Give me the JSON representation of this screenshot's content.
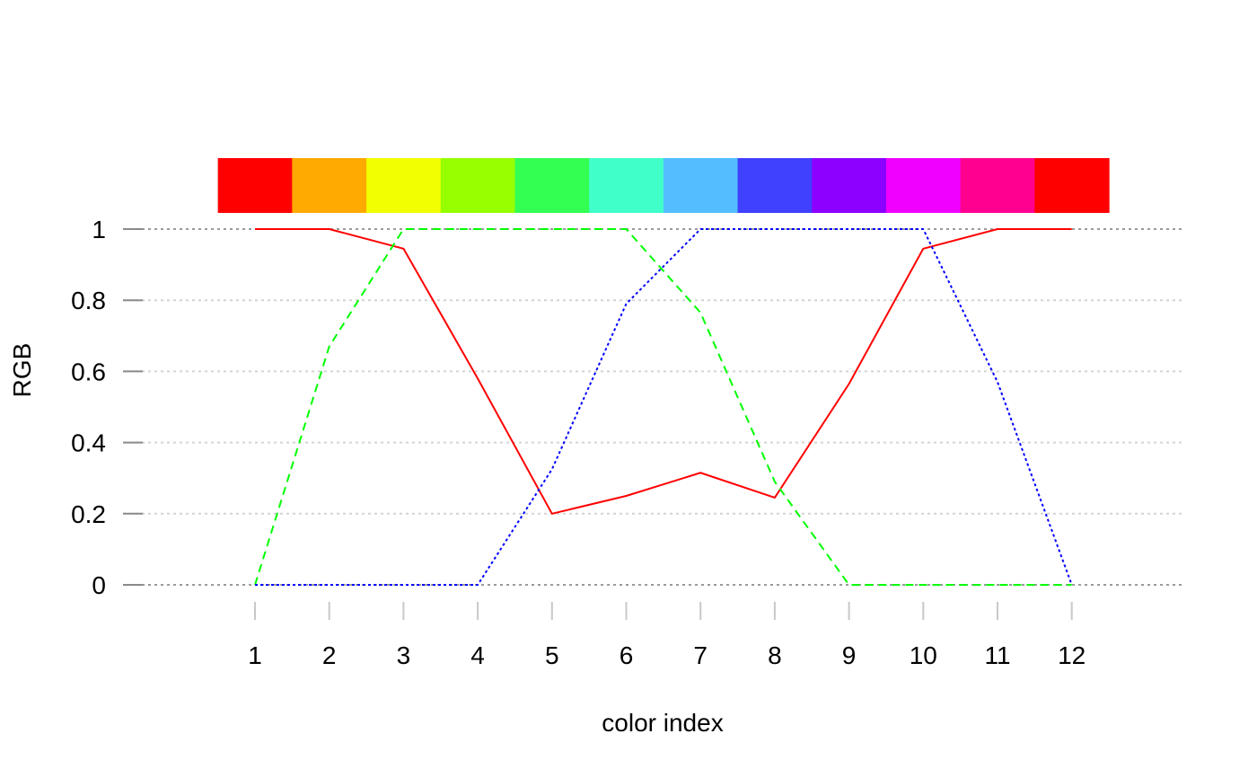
{
  "chart_data": {
    "type": "line",
    "xlabel": "color index",
    "ylabel": "RGB",
    "x": [
      1,
      2,
      3,
      4,
      5,
      6,
      7,
      8,
      9,
      10,
      11,
      12
    ],
    "x_tick_labels": [
      "1",
      "2",
      "3",
      "4",
      "5",
      "6",
      "7",
      "8",
      "9",
      "10",
      "11",
      "12"
    ],
    "y_ticks": [
      0,
      0.2,
      0.4,
      0.6,
      0.8,
      1
    ],
    "y_tick_labels": [
      "0",
      "0.2",
      "0.4",
      "0.6",
      "0.8",
      "1"
    ],
    "xlim": [
      0,
      13.5
    ],
    "ylim": [
      0,
      1
    ],
    "grid": true,
    "series": [
      {
        "key": "red",
        "color": "#ff0000",
        "line_style": "solid",
        "values": [
          1,
          1,
          0.945,
          0.58,
          0.2,
          0.25,
          0.315,
          0.245,
          0.565,
          0.945,
          1,
          1
        ]
      },
      {
        "key": "green",
        "color": "#00ff00",
        "line_style": "dashed",
        "values": [
          0,
          0.67,
          1,
          1,
          1,
          1,
          0.765,
          0.29,
          0,
          0,
          0,
          0
        ]
      },
      {
        "key": "blue",
        "color": "#0000ff",
        "line_style": "dotted",
        "values": [
          0,
          0,
          0,
          0,
          0.325,
          0.79,
          1,
          1,
          1,
          1,
          0.57,
          0
        ]
      }
    ],
    "palette": [
      "#FF0000",
      "#FFAA00",
      "#F1FF00",
      "#96FF00",
      "#33FF52",
      "#40FFC9",
      "#52BEFF",
      "#4040FF",
      "#8C00FF",
      "#F000FF",
      "#FF0090",
      "#FF0000"
    ]
  }
}
